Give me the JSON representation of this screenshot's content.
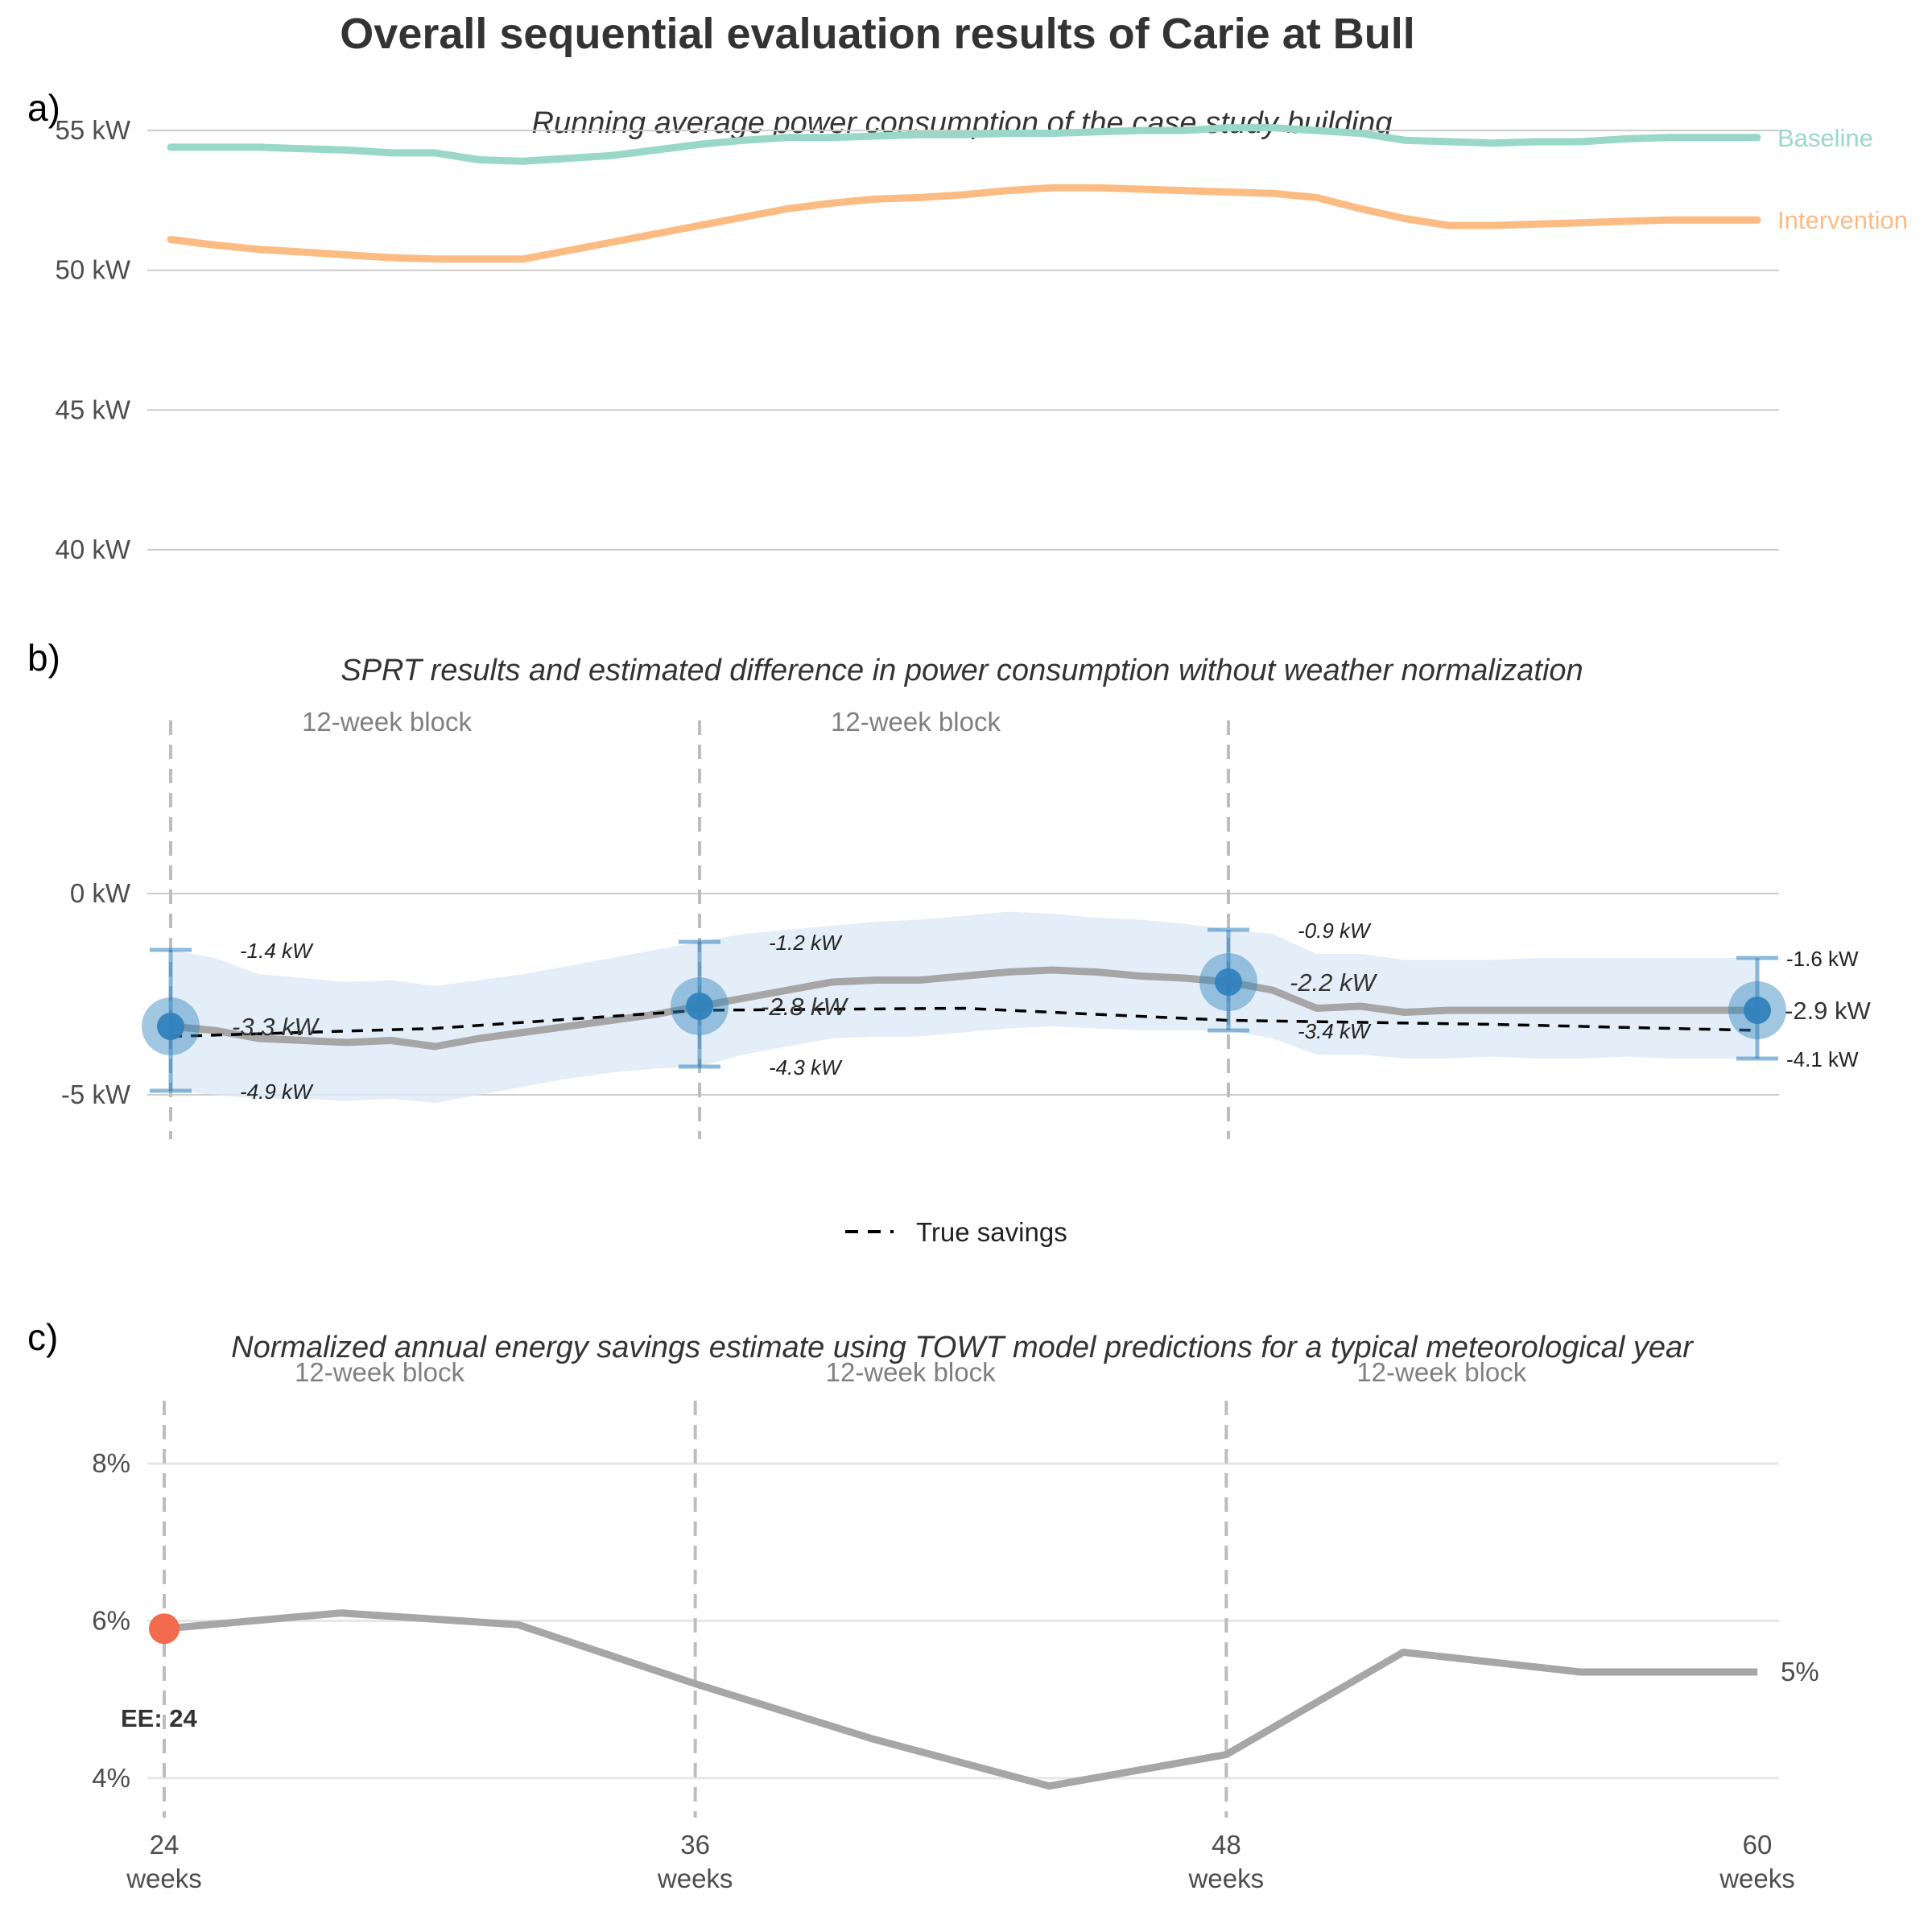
{
  "title": "Overall sequential evaluation results of Carie at Bull",
  "colors": {
    "baseline": "#99d8c9",
    "intervention": "#fdbb84",
    "estimate_line": "#a6a6a6",
    "ci_band": "#ddeaf6",
    "point": "#3182bd",
    "ee_point": "#f26b4f",
    "true_savings": "#000000"
  },
  "chart_data": [
    {
      "panel": "a)",
      "type": "line",
      "title": "Running average power consumption of the case study building",
      "ylabel": "",
      "xlabel": "",
      "ylim": [
        38.5,
        56.5
      ],
      "yticks": [
        40,
        45,
        50,
        55
      ],
      "ytick_labels": [
        "40 kW",
        "45 kW",
        "50 kW",
        "55 kW"
      ],
      "x": [
        24,
        25,
        26,
        27,
        28,
        29,
        30,
        31,
        32,
        33,
        34,
        35,
        36,
        37,
        38,
        39,
        40,
        41,
        42,
        43,
        44,
        45,
        46,
        47,
        48,
        49,
        50,
        51,
        52,
        53,
        54,
        55,
        56,
        57,
        58,
        59,
        60
      ],
      "series": [
        {
          "name": "Baseline",
          "color_key": "baseline",
          "values": [
            54.4,
            54.4,
            54.4,
            54.35,
            54.3,
            54.2,
            54.2,
            53.95,
            53.9,
            54.0,
            54.1,
            54.3,
            54.5,
            54.65,
            54.75,
            54.75,
            54.8,
            54.85,
            54.85,
            54.9,
            54.9,
            54.95,
            55.0,
            55.0,
            55.1,
            55.1,
            55.0,
            54.9,
            54.65,
            54.6,
            54.55,
            54.6,
            54.6,
            54.7,
            54.75,
            54.75,
            54.75
          ]
        },
        {
          "name": "Intervention",
          "color_key": "intervention",
          "values": [
            51.1,
            50.9,
            50.75,
            50.65,
            50.55,
            50.45,
            50.4,
            50.4,
            50.4,
            50.7,
            51.0,
            51.3,
            51.6,
            51.9,
            52.2,
            52.4,
            52.55,
            52.6,
            52.7,
            52.85,
            52.95,
            52.95,
            52.9,
            52.85,
            52.8,
            52.75,
            52.6,
            52.2,
            51.85,
            51.6,
            51.6,
            51.65,
            51.7,
            51.75,
            51.8,
            51.8,
            51.8
          ]
        }
      ]
    },
    {
      "panel": "b)",
      "type": "line",
      "title": "SPRT results and estimated difference in power consumption without weather normalization",
      "ylabel": "",
      "xlabel": "",
      "ylim": [
        -7.2,
        4.6
      ],
      "yticks": [
        -5,
        0
      ],
      "ytick_labels": [
        "-5 kW",
        "0 kW"
      ],
      "block_labels": [
        "12-week block",
        "12-week block"
      ],
      "block_lines_x": [
        24,
        36,
        48
      ],
      "estimate": {
        "x": [
          24,
          25,
          26,
          27,
          28,
          29,
          30,
          31,
          32,
          33,
          34,
          35,
          36,
          37,
          38,
          39,
          40,
          41,
          42,
          43,
          44,
          45,
          46,
          47,
          48,
          49,
          50,
          51,
          52,
          53,
          54,
          55,
          56,
          57,
          58,
          59,
          60
        ],
        "values": [
          -3.3,
          -3.4,
          -3.6,
          -3.65,
          -3.7,
          -3.65,
          -3.8,
          -3.6,
          -3.45,
          -3.3,
          -3.15,
          -3.0,
          -2.8,
          -2.6,
          -2.4,
          -2.2,
          -2.15,
          -2.15,
          -2.05,
          -1.95,
          -1.9,
          -1.95,
          -2.05,
          -2.1,
          -2.2,
          -2.4,
          -2.85,
          -2.8,
          -2.95,
          -2.9,
          -2.9,
          -2.9,
          -2.9,
          -2.9,
          -2.9,
          -2.9,
          -2.9
        ],
        "ci_low": [
          -4.9,
          -5.0,
          -5.1,
          -5.1,
          -5.15,
          -5.1,
          -5.2,
          -5.0,
          -4.8,
          -4.6,
          -4.45,
          -4.35,
          -4.3,
          -4.0,
          -3.8,
          -3.6,
          -3.55,
          -3.55,
          -3.45,
          -3.35,
          -3.3,
          -3.35,
          -3.4,
          -3.4,
          -3.4,
          -3.6,
          -4.0,
          -4.0,
          -4.1,
          -4.1,
          -4.05,
          -4.1,
          -4.1,
          -4.05,
          -4.1,
          -4.1,
          -4.1
        ],
        "ci_high": [
          -1.4,
          -1.6,
          -2.0,
          -2.1,
          -2.2,
          -2.15,
          -2.3,
          -2.15,
          -2.0,
          -1.8,
          -1.6,
          -1.4,
          -1.2,
          -1.0,
          -0.9,
          -0.8,
          -0.7,
          -0.65,
          -0.55,
          -0.45,
          -0.5,
          -0.6,
          -0.65,
          -0.75,
          -0.9,
          -1.0,
          -1.5,
          -1.5,
          -1.65,
          -1.65,
          -1.65,
          -1.6,
          -1.6,
          -1.6,
          -1.6,
          -1.6,
          -1.6
        ]
      },
      "true_savings": {
        "name": "True savings",
        "x": [
          24,
          30,
          36,
          42,
          48,
          54,
          60
        ],
        "values": [
          -3.55,
          -3.35,
          -2.9,
          -2.85,
          -3.15,
          -3.25,
          -3.4
        ]
      },
      "checkpoints": [
        {
          "x": 24,
          "estimate": -3.3,
          "low": -4.9,
          "high": -1.4,
          "estimate_label": "-3.3 kW",
          "low_label": "-4.9 kW",
          "high_label": "-1.4 kW"
        },
        {
          "x": 36,
          "estimate": -2.8,
          "low": -4.3,
          "high": -1.2,
          "estimate_label": "-2.8 kW",
          "low_label": "-4.3 kW",
          "high_label": "-1.2 kW"
        },
        {
          "x": 48,
          "estimate": -2.2,
          "low": -3.4,
          "high": -0.9,
          "estimate_label": "-2.2 kW",
          "low_label": "-3.4 kW",
          "high_label": "-0.9 kW"
        },
        {
          "x": 60,
          "estimate": -2.9,
          "low": -4.1,
          "high": -1.6,
          "estimate_label": "-2.9 kW",
          "low_label": "-4.1 kW",
          "high_label": "-1.6 kW"
        }
      ],
      "legend": {
        "position": "bottom",
        "entries": [
          "True savings"
        ]
      }
    },
    {
      "panel": "c)",
      "type": "line",
      "title": "Normalized annual energy savings estimate using TOWT model predictions for a typical meteorological year",
      "ylabel": "",
      "xlabel": "",
      "ylim": [
        3.6,
        8.9
      ],
      "yticks": [
        4,
        6,
        8
      ],
      "ytick_labels": [
        "4%",
        "6%",
        "8%"
      ],
      "xticks": [
        24,
        36,
        48,
        60
      ],
      "xtick_labels": [
        [
          "24",
          "weeks"
        ],
        [
          "36",
          "weeks"
        ],
        [
          "48",
          "weeks"
        ],
        [
          "60",
          "weeks"
        ]
      ],
      "block_labels": [
        "12-week block",
        "12-week block",
        "12-week block"
      ],
      "block_lines_x": [
        24,
        36,
        48
      ],
      "x": [
        24,
        28,
        32,
        36,
        40,
        44,
        48,
        52,
        56,
        60
      ],
      "values": [
        5.9,
        6.1,
        5.95,
        5.2,
        4.5,
        3.9,
        4.3,
        5.6,
        5.35,
        5.35
      ],
      "end_label": "5%",
      "early_end": {
        "x": 24,
        "value": 5.9,
        "label": "EE: 24"
      }
    }
  ]
}
